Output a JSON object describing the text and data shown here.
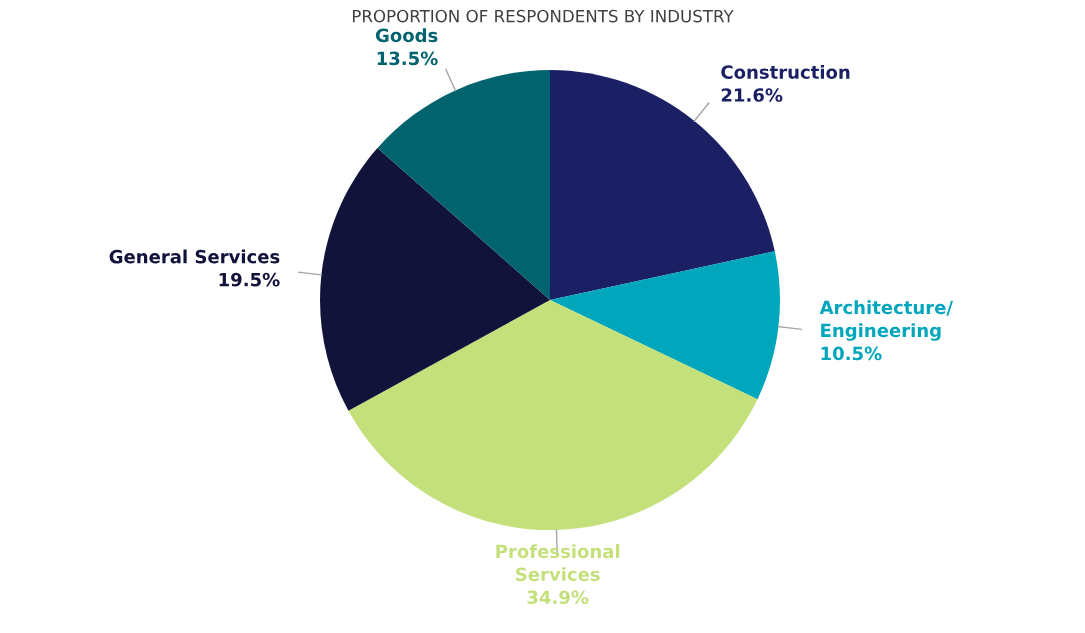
{
  "chart_data": {
    "type": "pie",
    "title": "PROPORTION OF RESPONDENTS BY INDUSTRY",
    "categories": [
      "Construction",
      "Architecture/\nEngineering",
      "Professional\nServices",
      "General Services",
      "Goods"
    ],
    "values": [
      21.6,
      10.5,
      34.9,
      19.5,
      13.5
    ],
    "value_labels": [
      "21.6%",
      "10.5%",
      "34.9%",
      "19.5%",
      "13.5%"
    ],
    "colors": [
      "#1b1f63",
      "#00a6bc",
      "#c3e07a",
      "#11133a",
      "#00636e"
    ],
    "legend": false
  }
}
